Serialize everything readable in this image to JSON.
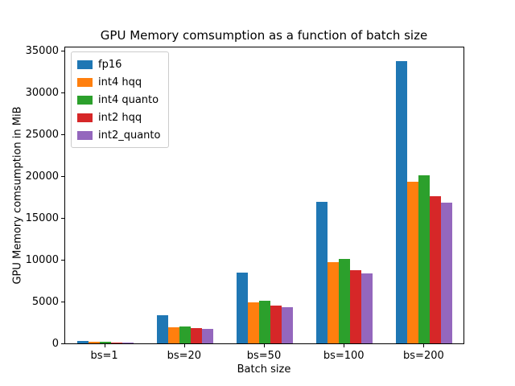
{
  "chart_data": {
    "type": "bar",
    "title": "GPU Memory comsumption as a function of batch size",
    "xlabel": "Batch size",
    "ylabel": "GPU Memory comsumption in MiB",
    "categories": [
      "bs=1",
      "bs=20",
      "bs=50",
      "bs=100",
      "bs=200"
    ],
    "series": [
      {
        "name": "fp16",
        "color": "#1f77b4",
        "values": [
          250,
          3400,
          8500,
          16900,
          33800
        ]
      },
      {
        "name": "int4 hqq",
        "color": "#ff7f0e",
        "values": [
          150,
          1900,
          4900,
          9700,
          19300
        ]
      },
      {
        "name": "int4 quanto",
        "color": "#2ca02c",
        "values": [
          160,
          2000,
          5100,
          10100,
          20100
        ]
      },
      {
        "name": "int2 hqq",
        "color": "#d62728",
        "values": [
          120,
          1800,
          4500,
          8800,
          17600
        ]
      },
      {
        "name": "int2_quanto",
        "color": "#9467bd",
        "values": [
          110,
          1700,
          4300,
          8400,
          16800
        ]
      }
    ],
    "yticks": [
      0,
      5000,
      10000,
      15000,
      20000,
      25000,
      30000,
      35000
    ],
    "ylim": [
      0,
      35500
    ],
    "legend_position": "upper left",
    "grid": false
  }
}
